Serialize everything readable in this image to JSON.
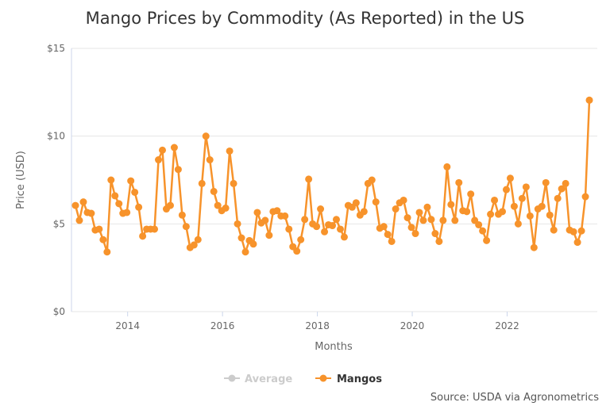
{
  "chart_data": {
    "type": "line",
    "title": "Mango Prices by Commodity (As Reported) in the US",
    "xlabel": "Months",
    "ylabel": "Price (USD)",
    "ylim": [
      0,
      15
    ],
    "yticks": [
      "$0",
      "$5",
      "$10",
      "$15"
    ],
    "ytick_values": [
      0,
      5,
      10,
      15
    ],
    "xticks": [
      "2014",
      "2016",
      "2018",
      "2020",
      "2022"
    ],
    "grid": "horizontal",
    "legend_position": "bottom",
    "legend": [
      {
        "name": "Average",
        "visible": false,
        "color": "#cccccc"
      },
      {
        "name": "Mangos",
        "visible": true,
        "color": "#f7932b"
      }
    ],
    "source": "Source: USDA via Agronometrics",
    "series": [
      {
        "name": "Mangos",
        "color": "#f7932b",
        "start": "2013-01",
        "values": [
          6.05,
          5.2,
          6.25,
          5.65,
          5.6,
          4.65,
          4.7,
          4.1,
          3.4,
          7.5,
          6.6,
          6.15,
          5.6,
          5.65,
          7.45,
          6.8,
          5.95,
          4.3,
          4.7,
          4.7,
          4.7,
          8.65,
          9.2,
          5.85,
          6.05,
          9.35,
          8.1,
          5.5,
          4.85,
          3.65,
          3.8,
          4.1,
          7.3,
          10.0,
          8.65,
          6.85,
          6.05,
          5.75,
          5.9,
          9.15,
          7.3,
          5.0,
          4.2,
          3.4,
          4.05,
          3.85,
          5.65,
          5.05,
          5.2,
          4.35,
          5.7,
          5.75,
          5.45,
          5.45,
          4.7,
          3.7,
          3.45,
          4.1,
          5.25,
          7.55,
          5.0,
          4.85,
          5.85,
          4.55,
          4.95,
          4.9,
          5.25,
          4.7,
          4.25,
          6.05,
          5.95,
          6.2,
          5.5,
          5.7,
          7.3,
          7.5,
          6.25,
          4.75,
          4.85,
          4.4,
          4.0,
          5.85,
          6.2,
          6.35,
          5.35,
          4.8,
          4.45,
          5.65,
          5.2,
          5.95,
          5.25,
          4.45,
          4.0,
          5.2,
          8.25,
          6.1,
          5.2,
          7.35,
          5.75,
          5.7,
          6.7,
          5.2,
          4.95,
          4.6,
          4.05,
          5.55,
          6.35,
          5.55,
          5.7,
          6.95,
          7.6,
          6.0,
          5.0,
          6.45,
          7.1,
          5.45,
          3.65,
          5.85,
          6.0,
          7.35,
          5.5,
          4.65,
          6.45,
          7.0,
          7.3,
          4.65,
          4.55,
          3.95,
          4.6,
          6.55,
          12.05
        ]
      }
    ]
  }
}
